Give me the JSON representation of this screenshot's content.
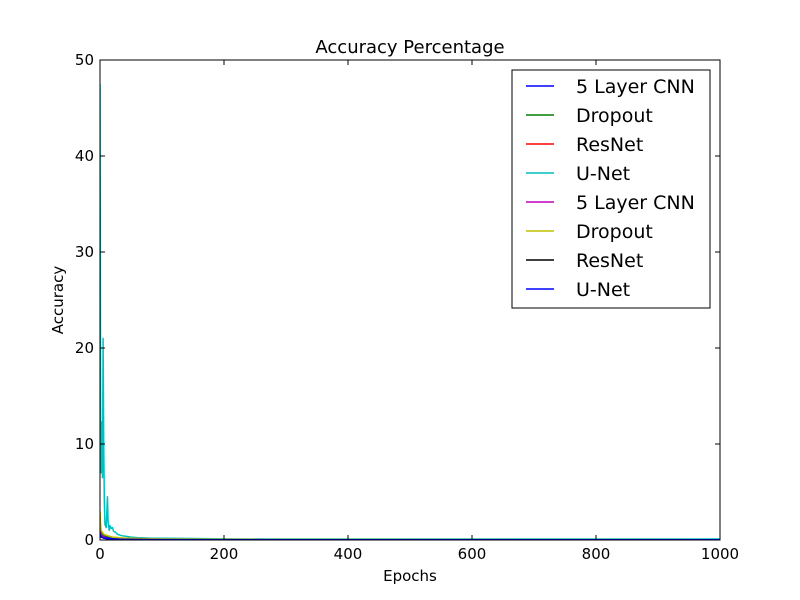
{
  "chart_data": {
    "type": "line",
    "title": "Accuracy Percentage",
    "xlabel": "Epochs",
    "ylabel": "Accuracy",
    "xlim": [
      0,
      1000
    ],
    "ylim": [
      0,
      50
    ],
    "xticks": [
      0,
      200,
      400,
      600,
      800,
      1000
    ],
    "yticks": [
      0,
      10,
      20,
      30,
      40,
      50
    ],
    "grid": false,
    "legend_position": "top-right",
    "series": [
      {
        "name": "5 Layer CNN",
        "color": "#0000ff",
        "x": [
          0,
          1,
          2,
          4,
          6,
          10,
          20,
          40,
          100,
          300,
          1000
        ],
        "y": [
          1.0,
          0.7,
          0.6,
          0.5,
          0.4,
          0.3,
          0.2,
          0.1,
          0.05,
          0.03,
          0.02
        ]
      },
      {
        "name": "Dropout",
        "color": "#008000",
        "x": [
          0,
          1,
          2,
          4,
          6,
          10,
          20,
          40,
          100,
          300,
          1000
        ],
        "y": [
          1.2,
          0.8,
          0.7,
          0.6,
          0.5,
          0.4,
          0.3,
          0.15,
          0.06,
          0.03,
          0.02
        ]
      },
      {
        "name": "ResNet",
        "color": "#ff0000",
        "x": [
          0,
          1,
          2,
          4,
          6,
          10,
          20,
          40,
          100,
          300,
          1000
        ],
        "y": [
          0.8,
          0.6,
          0.5,
          0.4,
          0.3,
          0.2,
          0.1,
          0.06,
          0.04,
          0.03,
          0.02
        ]
      },
      {
        "name": "U-Net",
        "color": "#00bfbf",
        "x": [
          0,
          1,
          2,
          3,
          4,
          5,
          6,
          7,
          8,
          10,
          12,
          13,
          14,
          15,
          16,
          18,
          20,
          22,
          25,
          28,
          30,
          35,
          40,
          50,
          60,
          80,
          100,
          150,
          200,
          300,
          500,
          1000
        ],
        "y": [
          47.5,
          12.0,
          7.0,
          12.3,
          6.5,
          21.0,
          10.0,
          4.0,
          1.6,
          1.3,
          4.5,
          2.0,
          1.4,
          1.0,
          1.5,
          1.2,
          1.3,
          0.9,
          0.8,
          0.6,
          0.55,
          0.45,
          0.4,
          0.3,
          0.25,
          0.2,
          0.18,
          0.15,
          0.12,
          0.1,
          0.1,
          0.1
        ]
      },
      {
        "name": "5 Layer CNN",
        "color": "#bf00bf",
        "x": [
          0,
          1,
          2,
          4,
          6,
          10,
          20,
          40,
          100,
          300,
          1000
        ],
        "y": [
          0.9,
          0.6,
          0.5,
          0.4,
          0.3,
          0.2,
          0.1,
          0.05,
          0.03,
          0.02,
          0.02
        ]
      },
      {
        "name": "Dropout",
        "color": "#bfbf00",
        "x": [
          0,
          1,
          2,
          4,
          6,
          10,
          20,
          40,
          100,
          300,
          1000
        ],
        "y": [
          3.0,
          1.5,
          1.0,
          0.8,
          0.6,
          0.5,
          0.3,
          0.2,
          0.1,
          0.05,
          0.03
        ]
      },
      {
        "name": "ResNet",
        "color": "#000000",
        "x": [
          0,
          1,
          2,
          4,
          6,
          10,
          20,
          40,
          100,
          300,
          1000
        ],
        "y": [
          0.5,
          0.4,
          0.3,
          0.25,
          0.2,
          0.15,
          0.1,
          0.05,
          0.03,
          0.02,
          0.02
        ]
      },
      {
        "name": "U-Net",
        "color": "#0000ff",
        "x": [
          0,
          1,
          2,
          4,
          6,
          10,
          20,
          40,
          100,
          300,
          1000
        ],
        "y": [
          0.6,
          0.4,
          0.3,
          0.25,
          0.2,
          0.15,
          0.1,
          0.06,
          0.04,
          0.03,
          0.02
        ]
      }
    ]
  }
}
